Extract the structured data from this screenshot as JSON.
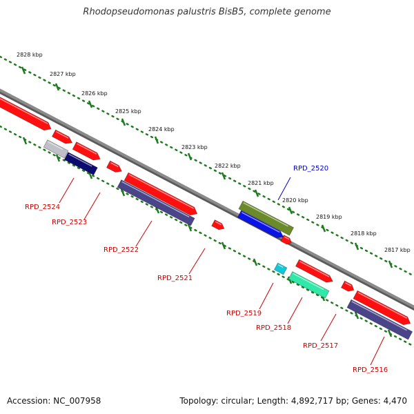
{
  "title": "Rhodopseudomonas palustris BisB5, complete genome",
  "footer": {
    "accession": "Accession: NC_007958",
    "topology": "Topology: circular; Length: 4,892,717 bp; Genes: 4,470"
  },
  "colors": {
    "backbone": "#8a8a8a",
    "scale_dots": "#1f7a1f",
    "label_red": "#cc0000",
    "label_blue": "#0000cc"
  },
  "scale_labels": [
    "2828 kbp",
    "2827 kbp",
    "2826 kbp",
    "2825 kbp",
    "2824 kbp",
    "2823 kbp",
    "2822 kbp",
    "2821 kbp",
    "2820 kbp",
    "2819 kbp",
    "2818 kbp",
    "2817 kbp"
  ],
  "genes": [
    {
      "label": "RPD_2524",
      "color": "#c0c0c8",
      "strand": "minus"
    },
    {
      "label": "RPD_2523",
      "color": "#0c0c70",
      "strand": "minus"
    },
    {
      "label": "RPD_2522",
      "color": "#4a4488",
      "strand": "minus"
    },
    {
      "label": "RPD_2521",
      "color": "#ff1010",
      "strand": "plus"
    },
    {
      "label": "RPD_2520",
      "color": "#0a14e6",
      "strand": "plus"
    },
    {
      "label": "RPD_2519",
      "color": "#10c8d8",
      "strand": "minus"
    },
    {
      "label": "RPD_2518",
      "color": "#30e8a8",
      "strand": "minus"
    },
    {
      "label": "RPD_2517",
      "color": "#ff1010",
      "strand": "plus"
    },
    {
      "label": "RPD_2516",
      "color": "#4a4488",
      "strand": "minus"
    }
  ],
  "unlabeled_features": [
    {
      "color": "#ff1010"
    },
    {
      "color": "#ff1010"
    },
    {
      "color": "#ff1010"
    },
    {
      "color": "#ff1010"
    },
    {
      "color": "#6b8a2a"
    },
    {
      "color": "#ff1010"
    },
    {
      "color": "#ff1010"
    },
    {
      "color": "#ff1010"
    }
  ]
}
